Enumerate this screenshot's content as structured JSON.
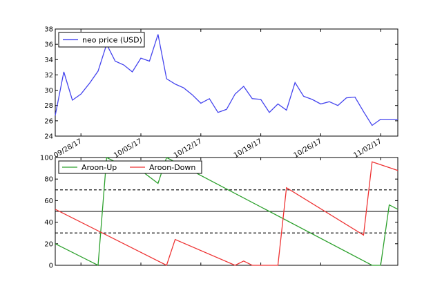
{
  "chart_data": [
    {
      "type": "line",
      "x_start": "2017-09-25",
      "x_end": "2017-11-04",
      "x_tick_labels": [
        "09/28/17",
        "10/05/17",
        "10/12/17",
        "10/19/17",
        "10/26/17",
        "11/02/17"
      ],
      "ylim": [
        24,
        38
      ],
      "y_ticks": [
        24,
        26,
        28,
        30,
        32,
        34,
        36,
        38
      ],
      "legend_position": "top-left",
      "series": [
        {
          "name": "neo price (USD)",
          "color": "#4444ee",
          "dates": [
            "2017-09-25",
            "2017-09-26",
            "2017-09-27",
            "2017-09-28",
            "2017-09-29",
            "2017-09-30",
            "2017-10-01",
            "2017-10-02",
            "2017-10-03",
            "2017-10-04",
            "2017-10-05",
            "2017-10-06",
            "2017-10-07",
            "2017-10-08",
            "2017-10-09",
            "2017-10-10",
            "2017-10-11",
            "2017-10-12",
            "2017-10-13",
            "2017-10-14",
            "2017-10-15",
            "2017-10-16",
            "2017-10-17",
            "2017-10-18",
            "2017-10-19",
            "2017-10-20",
            "2017-10-21",
            "2017-10-22",
            "2017-10-23",
            "2017-10-24",
            "2017-10-25",
            "2017-10-26",
            "2017-10-27",
            "2017-10-28",
            "2017-10-29",
            "2017-10-30",
            "2017-10-31",
            "2017-11-01",
            "2017-11-02",
            "2017-11-03",
            "2017-11-04"
          ],
          "values": [
            26.7,
            32.4,
            28.7,
            29.5,
            30.9,
            32.5,
            36.0,
            33.8,
            33.3,
            32.4,
            34.2,
            33.8,
            37.3,
            31.5,
            30.8,
            30.3,
            29.4,
            28.3,
            28.9,
            27.1,
            27.5,
            29.5,
            30.5,
            28.9,
            28.8,
            27.1,
            28.2,
            27.4,
            31.0,
            29.2,
            28.8,
            28.2,
            28.5,
            28.0,
            29.0,
            29.1,
            27.2,
            25.4,
            26.2,
            26.2,
            26.2
          ]
        }
      ]
    },
    {
      "type": "line",
      "x_start": "2017-09-25",
      "x_end": "2017-11-04",
      "ylim": [
        0,
        100
      ],
      "y_ticks": [
        0,
        20,
        40,
        60,
        80,
        100
      ],
      "reference_lines": [
        {
          "value": 70,
          "style": "dashed"
        },
        {
          "value": 50,
          "style": "solid"
        },
        {
          "value": 30,
          "style": "dashed"
        }
      ],
      "legend_position": "top-left",
      "series": [
        {
          "name": "Aroon-Up",
          "color": "#2ca02c",
          "dates": [
            "2017-09-25",
            "2017-09-30",
            "2017-10-01",
            "2017-10-02",
            "2017-10-05",
            "2017-10-07",
            "2017-10-08",
            "2017-11-01",
            "2017-11-02",
            "2017-11-03",
            "2017-11-04"
          ],
          "values": [
            20,
            0,
            100,
            96,
            88,
            76,
            100,
            0,
            0,
            56,
            52
          ]
        },
        {
          "name": "Aroon-Down",
          "color": "#ee3333",
          "dates": [
            "2017-09-25",
            "2017-10-08",
            "2017-10-09",
            "2017-10-16",
            "2017-10-17",
            "2017-10-18",
            "2017-10-21",
            "2017-10-22",
            "2017-10-31",
            "2017-11-01",
            "2017-11-04"
          ],
          "values": [
            52,
            0,
            24,
            0,
            4,
            0,
            0,
            72,
            28,
            96,
            88
          ]
        }
      ]
    }
  ]
}
